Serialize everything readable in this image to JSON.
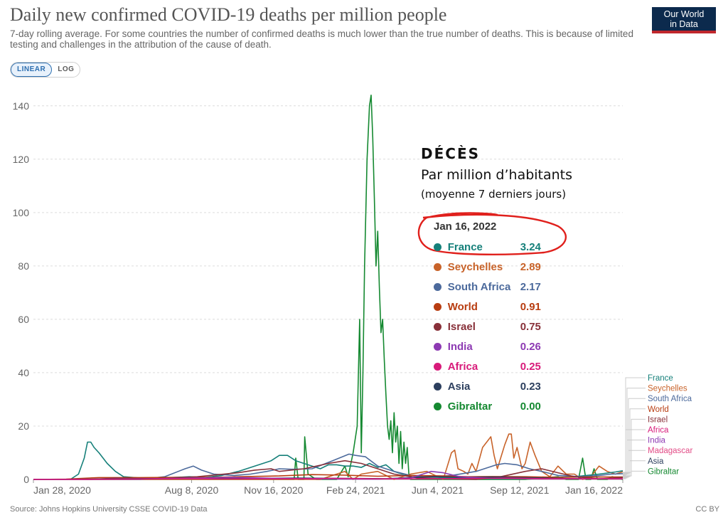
{
  "header": {
    "title": "Daily new confirmed COVID-19 deaths per million people",
    "subtitle": "7-day rolling average. For some countries the number of confirmed deaths is much lower than the true number of deaths. This is because of limited testing and challenges in the attribution of the cause of death.",
    "logo_line1": "Our World",
    "logo_line2": "in Data"
  },
  "controls": {
    "linear_label": "LINEAR",
    "log_label": "LOG",
    "active": "linear"
  },
  "overlay": {
    "heading": "DÉCÈS",
    "line1": "Par million d’habitants",
    "line2": "(moyenne 7 derniers jours)",
    "annotation_color": "#e0201c"
  },
  "tooltip": {
    "date": "Jan 16, 2022",
    "rows": [
      {
        "name": "France",
        "value": "3.24",
        "color": "#16807a"
      },
      {
        "name": "Seychelles",
        "value": "2.89",
        "color": "#c8632a"
      },
      {
        "name": "South Africa",
        "value": "2.17",
        "color": "#4c6a9c"
      },
      {
        "name": "World",
        "value": "0.91",
        "color": "#b83d11"
      },
      {
        "name": "Israel",
        "value": "0.75",
        "color": "#883039"
      },
      {
        "name": "India",
        "value": "0.26",
        "color": "#8d3ab3"
      },
      {
        "name": "Africa",
        "value": "0.25",
        "color": "#d81b7a"
      },
      {
        "name": "Asia",
        "value": "0.23",
        "color": "#2c3f5e"
      },
      {
        "name": "Gibraltar",
        "value": "0.00",
        "color": "#158931"
      }
    ]
  },
  "footer": {
    "source": "Source: Johns Hopkins University CSSE COVID-19 Data",
    "license": "CC BY"
  },
  "chart_data": {
    "type": "line",
    "x_ticks": [
      "Jan 28, 2020",
      "Aug 8, 2020",
      "Nov 16, 2020",
      "Feb 24, 2021",
      "Jun 4, 2021",
      "Sep 12, 2021",
      "Jan 16, 2022"
    ],
    "x_tick_days": [
      0,
      193,
      293,
      393,
      493,
      593,
      719
    ],
    "y_ticks": [
      0,
      20,
      40,
      60,
      80,
      100,
      120,
      140
    ],
    "ylim": [
      0,
      145
    ],
    "xlim_days": [
      0,
      719
    ],
    "grid": true,
    "legend_labels": [
      "France",
      "Seychelles",
      "South Africa",
      "World",
      "Israel",
      "Africa",
      "India",
      "Madagascar",
      "Asia",
      "Gibraltar"
    ],
    "legend_colors": [
      "#16807a",
      "#c8632a",
      "#4c6a9c",
      "#b83d11",
      "#883039",
      "#d81b7a",
      "#8d3ab3",
      "#e24b86",
      "#2c3f5e",
      "#158931"
    ],
    "series": [
      {
        "name": "Gibraltar",
        "color": "#158931",
        "points": [
          [
            0,
            0
          ],
          [
            300,
            0
          ],
          [
            318,
            0
          ],
          [
            320,
            8
          ],
          [
            323,
            0
          ],
          [
            330,
            0
          ],
          [
            331,
            16
          ],
          [
            335,
            2
          ],
          [
            345,
            0
          ],
          [
            370,
            0
          ],
          [
            380,
            5
          ],
          [
            384,
            1
          ],
          [
            390,
            10
          ],
          [
            395,
            20
          ],
          [
            398,
            60
          ],
          [
            400,
            10
          ],
          [
            402,
            40
          ],
          [
            404,
            80
          ],
          [
            407,
            120
          ],
          [
            410,
            140
          ],
          [
            412,
            144
          ],
          [
            414,
            128
          ],
          [
            416,
            105
          ],
          [
            418,
            80
          ],
          [
            420,
            93
          ],
          [
            422,
            72
          ],
          [
            424,
            55
          ],
          [
            426,
            60
          ],
          [
            428,
            45
          ],
          [
            430,
            32
          ],
          [
            432,
            20
          ],
          [
            434,
            15
          ],
          [
            436,
            22
          ],
          [
            438,
            10
          ],
          [
            440,
            25
          ],
          [
            442,
            14
          ],
          [
            444,
            20
          ],
          [
            446,
            6
          ],
          [
            448,
            18
          ],
          [
            450,
            4
          ],
          [
            452,
            14
          ],
          [
            454,
            6
          ],
          [
            456,
            12
          ],
          [
            458,
            2
          ],
          [
            460,
            0
          ],
          [
            600,
            0
          ],
          [
            640,
            1
          ],
          [
            650,
            0
          ],
          [
            665,
            0
          ],
          [
            670,
            8
          ],
          [
            674,
            0
          ],
          [
            680,
            0
          ],
          [
            684,
            4
          ],
          [
            688,
            0
          ],
          [
            700,
            0
          ],
          [
            706,
            1
          ],
          [
            719,
            0
          ]
        ]
      },
      {
        "name": "Seychelles",
        "color": "#c8632a",
        "points": [
          [
            0,
            0
          ],
          [
            350,
            0
          ],
          [
            380,
            3
          ],
          [
            390,
            0
          ],
          [
            400,
            2
          ],
          [
            420,
            3
          ],
          [
            440,
            0
          ],
          [
            460,
            2
          ],
          [
            480,
            3
          ],
          [
            500,
            0
          ],
          [
            505,
            5
          ],
          [
            510,
            10
          ],
          [
            514,
            11
          ],
          [
            518,
            4
          ],
          [
            525,
            3
          ],
          [
            530,
            2
          ],
          [
            535,
            6
          ],
          [
            540,
            3
          ],
          [
            548,
            12
          ],
          [
            553,
            14
          ],
          [
            558,
            16
          ],
          [
            562,
            9
          ],
          [
            566,
            4
          ],
          [
            570,
            8
          ],
          [
            575,
            13
          ],
          [
            580,
            17
          ],
          [
            583,
            17
          ],
          [
            586,
            8
          ],
          [
            590,
            12
          ],
          [
            596,
            4
          ],
          [
            600,
            6
          ],
          [
            606,
            14
          ],
          [
            612,
            9
          ],
          [
            620,
            3
          ],
          [
            630,
            1
          ],
          [
            640,
            5
          ],
          [
            650,
            2
          ],
          [
            660,
            2
          ],
          [
            670,
            0
          ],
          [
            680,
            1
          ],
          [
            690,
            5
          ],
          [
            700,
            3
          ],
          [
            710,
            2
          ],
          [
            719,
            2.89
          ]
        ]
      },
      {
        "name": "France",
        "color": "#16807a",
        "points": [
          [
            0,
            0
          ],
          [
            45,
            0
          ],
          [
            55,
            2
          ],
          [
            62,
            8
          ],
          [
            66,
            14
          ],
          [
            70,
            14
          ],
          [
            74,
            12
          ],
          [
            80,
            10
          ],
          [
            90,
            6
          ],
          [
            100,
            3
          ],
          [
            110,
            1
          ],
          [
            140,
            0.3
          ],
          [
            190,
            1
          ],
          [
            210,
            0.8
          ],
          [
            230,
            1.5
          ],
          [
            250,
            3
          ],
          [
            270,
            5
          ],
          [
            290,
            7
          ],
          [
            300,
            9
          ],
          [
            310,
            9
          ],
          [
            320,
            7
          ],
          [
            330,
            6
          ],
          [
            340,
            5
          ],
          [
            350,
            4
          ],
          [
            360,
            5.5
          ],
          [
            370,
            5.5
          ],
          [
            380,
            5
          ],
          [
            390,
            5
          ],
          [
            400,
            4.5
          ],
          [
            410,
            6
          ],
          [
            420,
            4.5
          ],
          [
            430,
            5.5
          ],
          [
            440,
            3
          ],
          [
            450,
            2
          ],
          [
            470,
            1
          ],
          [
            520,
            0.5
          ],
          [
            560,
            0.3
          ],
          [
            620,
            0.5
          ],
          [
            660,
            1
          ],
          [
            690,
            2
          ],
          [
            710,
            2.8
          ],
          [
            719,
            3.24
          ]
        ]
      },
      {
        "name": "South Africa",
        "color": "#4c6a9c",
        "points": [
          [
            0,
            0
          ],
          [
            130,
            0
          ],
          [
            160,
            1
          ],
          [
            185,
            4
          ],
          [
            195,
            5
          ],
          [
            205,
            3.5
          ],
          [
            220,
            2
          ],
          [
            245,
            1.5
          ],
          [
            265,
            2
          ],
          [
            285,
            3
          ],
          [
            300,
            4
          ],
          [
            315,
            3.8
          ],
          [
            340,
            4
          ],
          [
            365,
            7
          ],
          [
            385,
            9.5
          ],
          [
            393,
            9
          ],
          [
            405,
            8.5
          ],
          [
            420,
            5
          ],
          [
            440,
            3
          ],
          [
            460,
            1.5
          ],
          [
            490,
            1
          ],
          [
            510,
            1.5
          ],
          [
            540,
            3
          ],
          [
            565,
            5.5
          ],
          [
            575,
            6
          ],
          [
            590,
            5.5
          ],
          [
            605,
            4
          ],
          [
            620,
            3
          ],
          [
            640,
            1.5
          ],
          [
            670,
            1
          ],
          [
            690,
            1.5
          ],
          [
            705,
            2
          ],
          [
            719,
            2.17
          ]
        ]
      },
      {
        "name": "World",
        "color": "#b83d11",
        "points": [
          [
            0,
            0
          ],
          [
            40,
            0.1
          ],
          [
            80,
            0.7
          ],
          [
            130,
            0.7
          ],
          [
            180,
            0.8
          ],
          [
            220,
            0.8
          ],
          [
            260,
            1.1
          ],
          [
            300,
            1.3
          ],
          [
            340,
            1.8
          ],
          [
            380,
            1.6
          ],
          [
            420,
            1.2
          ],
          [
            460,
            1.5
          ],
          [
            500,
            1.3
          ],
          [
            530,
            1.0
          ],
          [
            560,
            1.1
          ],
          [
            600,
            1.0
          ],
          [
            640,
            0.8
          ],
          [
            680,
            0.9
          ],
          [
            719,
            0.91
          ]
        ]
      },
      {
        "name": "Israel",
        "color": "#883039",
        "points": [
          [
            0,
            0
          ],
          [
            70,
            0
          ],
          [
            100,
            0.5
          ],
          [
            150,
            0.3
          ],
          [
            200,
            1
          ],
          [
            250,
            2.5
          ],
          [
            270,
            3.5
          ],
          [
            290,
            4
          ],
          [
            300,
            3
          ],
          [
            330,
            4
          ],
          [
            360,
            6
          ],
          [
            380,
            7
          ],
          [
            400,
            6
          ],
          [
            420,
            4
          ],
          [
            440,
            2
          ],
          [
            470,
            0.5
          ],
          [
            540,
            0
          ],
          [
            570,
            1
          ],
          [
            600,
            3
          ],
          [
            620,
            4
          ],
          [
            640,
            2.5
          ],
          [
            660,
            1
          ],
          [
            690,
            0.2
          ],
          [
            719,
            0.75
          ]
        ]
      },
      {
        "name": "Asia",
        "color": "#2c3f5e",
        "points": [
          [
            0,
            0
          ],
          [
            120,
            0.2
          ],
          [
            200,
            0.4
          ],
          [
            260,
            0.4
          ],
          [
            320,
            0.5
          ],
          [
            380,
            0.4
          ],
          [
            430,
            0.3
          ],
          [
            470,
            0.8
          ],
          [
            490,
            1.1
          ],
          [
            520,
            0.8
          ],
          [
            560,
            0.9
          ],
          [
            600,
            0.7
          ],
          [
            640,
            0.4
          ],
          [
            680,
            0.2
          ],
          [
            719,
            0.23
          ]
        ]
      },
      {
        "name": "India",
        "color": "#8d3ab3",
        "points": [
          [
            0,
            0
          ],
          [
            120,
            0.1
          ],
          [
            200,
            0.5
          ],
          [
            240,
            0.8
          ],
          [
            280,
            0.5
          ],
          [
            340,
            0.2
          ],
          [
            420,
            0.1
          ],
          [
            460,
            0.5
          ],
          [
            485,
            3
          ],
          [
            500,
            2.5
          ],
          [
            520,
            1
          ],
          [
            560,
            0.4
          ],
          [
            620,
            0.2
          ],
          [
            680,
            0.2
          ],
          [
            719,
            0.26
          ]
        ]
      },
      {
        "name": "Africa",
        "color": "#d81b7a",
        "points": [
          [
            0,
            0
          ],
          [
            120,
            0.1
          ],
          [
            180,
            0.3
          ],
          [
            220,
            0.2
          ],
          [
            280,
            0.2
          ],
          [
            330,
            0.3
          ],
          [
            370,
            0.4
          ],
          [
            420,
            0.2
          ],
          [
            470,
            0.2
          ],
          [
            540,
            0.4
          ],
          [
            580,
            0.5
          ],
          [
            620,
            0.3
          ],
          [
            680,
            0.2
          ],
          [
            719,
            0.25
          ]
        ]
      }
    ]
  }
}
